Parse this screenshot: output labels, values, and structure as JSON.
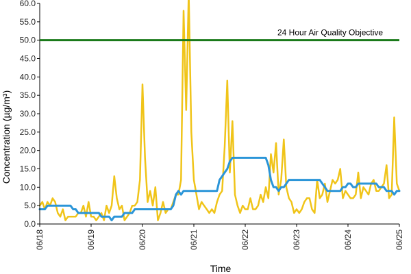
{
  "chart_data": {
    "type": "line",
    "title": "",
    "xlabel": "Time",
    "ylabel": "Concentration (µg/m³)",
    "ylim": [
      0,
      60
    ],
    "yticks": [
      "0.0",
      "5.0",
      "10.0",
      "15.0",
      "20.0",
      "25.0",
      "30.0",
      "35.0",
      "40.0",
      "45.0",
      "50.0",
      "55.0",
      "60.0"
    ],
    "xticks": [
      "06/18",
      "06/19",
      "06/20",
      "06/21",
      "06/22",
      "06/23",
      "06/24",
      "06/25"
    ],
    "grid": false,
    "legend": "none",
    "colors": {
      "yellow": "#f0c419",
      "blue": "#2b95d8",
      "objective": "#1a7a1a",
      "axis": "#000000"
    },
    "objective": {
      "label": "24 Hour Air Quality Objective",
      "value": 50
    },
    "series": [
      {
        "color": "#f0c419",
        "x": [
          0.0,
          0.05,
          0.1,
          0.15,
          0.2,
          0.25,
          0.3,
          0.35,
          0.4,
          0.45,
          0.5,
          0.55,
          0.6,
          0.65,
          0.7,
          0.75,
          0.8,
          0.85,
          0.9,
          0.95,
          1.0,
          1.05,
          1.1,
          1.15,
          1.2,
          1.25,
          1.3,
          1.35,
          1.4,
          1.45,
          1.5,
          1.55,
          1.6,
          1.65,
          1.7,
          1.75,
          1.8,
          1.85,
          1.9,
          1.95,
          2.0,
          2.05,
          2.1,
          2.15,
          2.2,
          2.25,
          2.3,
          2.35,
          2.4,
          2.45,
          2.5,
          2.55,
          2.6,
          2.65,
          2.7,
          2.75,
          2.8,
          2.85,
          2.9,
          2.95,
          3.0,
          3.05,
          3.1,
          3.15,
          3.2,
          3.25,
          3.3,
          3.35,
          3.4,
          3.45,
          3.5,
          3.55,
          3.6,
          3.65,
          3.7,
          3.75,
          3.8,
          3.85,
          3.9,
          3.95,
          4.0,
          4.05,
          4.1,
          4.15,
          4.2,
          4.25,
          4.3,
          4.35,
          4.4,
          4.45,
          4.5,
          4.55,
          4.6,
          4.65,
          4.7,
          4.75,
          4.8,
          4.85,
          4.9,
          4.95,
          5.0,
          5.05,
          5.1,
          5.15,
          5.2,
          5.25,
          5.3,
          5.35,
          5.4,
          5.45,
          5.5,
          5.55,
          5.6,
          5.65,
          5.7,
          5.75,
          5.8,
          5.85,
          5.9,
          5.95,
          6.0,
          6.05,
          6.1,
          6.15,
          6.2,
          6.25,
          6.3,
          6.35,
          6.4,
          6.45,
          6.5,
          6.55,
          6.6,
          6.65,
          6.7,
          6.75,
          6.8,
          6.85,
          6.9,
          6.95,
          7.0
        ],
        "y": [
          5,
          6,
          4,
          6,
          5,
          7,
          6,
          3,
          2,
          4,
          1,
          2,
          2,
          2,
          2,
          3,
          3,
          5,
          2,
          6,
          2,
          2,
          1,
          2,
          3,
          1,
          5,
          3,
          5,
          13,
          7,
          4,
          5,
          1,
          2,
          3,
          5,
          5,
          6,
          12,
          38,
          18,
          6,
          9,
          5,
          10,
          1,
          3,
          6,
          3,
          4,
          4,
          6,
          8,
          8,
          12,
          58,
          31,
          63,
          25,
          12,
          8,
          4,
          6,
          5,
          4,
          3,
          4,
          3,
          6,
          8,
          9,
          21,
          39,
          14,
          28,
          8,
          5,
          3,
          5,
          4,
          4,
          7,
          4,
          4,
          5,
          8,
          6,
          10,
          7,
          19,
          14,
          22,
          8,
          12,
          23,
          10,
          7,
          6,
          3,
          4,
          3,
          4,
          6,
          7,
          7,
          4,
          3,
          12,
          7,
          8,
          11,
          6,
          9,
          12,
          11,
          12,
          15,
          7,
          9,
          8,
          7,
          7,
          8,
          14,
          7,
          10,
          9,
          8,
          11,
          12,
          9,
          9,
          10,
          11,
          16,
          7,
          8,
          29,
          11,
          9
        ]
      },
      {
        "color": "#2b95d8",
        "x": [
          0.0,
          0.05,
          0.1,
          0.15,
          0.2,
          0.25,
          0.3,
          0.35,
          0.4,
          0.45,
          0.5,
          0.55,
          0.6,
          0.65,
          0.7,
          0.75,
          0.8,
          0.85,
          0.9,
          0.95,
          1.0,
          1.05,
          1.1,
          1.15,
          1.2,
          1.25,
          1.3,
          1.35,
          1.4,
          1.45,
          1.5,
          1.55,
          1.6,
          1.65,
          1.7,
          1.75,
          1.8,
          1.85,
          1.9,
          1.95,
          2.0,
          2.05,
          2.1,
          2.15,
          2.2,
          2.25,
          2.3,
          2.35,
          2.4,
          2.45,
          2.5,
          2.55,
          2.6,
          2.65,
          2.7,
          2.75,
          2.8,
          2.85,
          2.9,
          2.95,
          3.0,
          3.05,
          3.1,
          3.15,
          3.2,
          3.25,
          3.3,
          3.35,
          3.4,
          3.45,
          3.5,
          3.55,
          3.6,
          3.65,
          3.7,
          3.75,
          3.8,
          3.85,
          3.9,
          3.95,
          4.0,
          4.05,
          4.1,
          4.15,
          4.2,
          4.25,
          4.3,
          4.35,
          4.4,
          4.45,
          4.5,
          4.55,
          4.6,
          4.65,
          4.7,
          4.75,
          4.8,
          4.85,
          4.9,
          4.95,
          5.0,
          5.05,
          5.1,
          5.15,
          5.2,
          5.25,
          5.3,
          5.35,
          5.4,
          5.45,
          5.5,
          5.55,
          5.6,
          5.65,
          5.7,
          5.75,
          5.8,
          5.85,
          5.9,
          5.95,
          6.0,
          6.05,
          6.1,
          6.15,
          6.2,
          6.25,
          6.3,
          6.35,
          6.4,
          6.45,
          6.5,
          6.55,
          6.6,
          6.65,
          6.7,
          6.75,
          6.8,
          6.85,
          6.9,
          6.95,
          7.0
        ],
        "y": [
          4,
          4,
          4,
          5,
          5,
          5,
          5,
          5,
          5,
          5,
          5,
          5,
          5,
          4,
          4,
          3,
          3,
          3,
          3,
          3,
          3,
          3,
          3,
          3,
          2,
          2,
          2,
          2,
          1,
          2,
          2,
          2,
          2,
          3,
          3,
          3,
          3,
          4,
          4,
          4,
          4,
          4,
          4,
          4,
          4,
          4,
          4,
          4,
          4,
          4,
          4,
          4,
          5,
          8,
          9,
          8,
          9,
          9,
          9,
          9,
          9,
          9,
          9,
          9,
          9,
          9,
          9,
          9,
          9,
          9,
          12,
          13,
          14,
          15,
          17,
          18,
          18,
          18,
          18,
          18,
          18,
          18,
          18,
          18,
          18,
          18,
          18,
          18,
          18,
          16,
          12,
          10,
          10,
          9,
          10,
          10,
          11,
          12,
          12,
          12,
          12,
          12,
          12,
          12,
          12,
          12,
          12,
          12,
          12,
          12,
          11,
          10,
          9,
          9,
          9,
          9,
          9,
          9,
          10,
          10,
          11,
          11,
          10,
          10,
          11,
          11,
          11,
          11,
          11,
          11,
          11,
          11,
          10,
          10,
          10,
          9,
          9,
          9,
          8,
          9,
          9
        ]
      }
    ]
  }
}
